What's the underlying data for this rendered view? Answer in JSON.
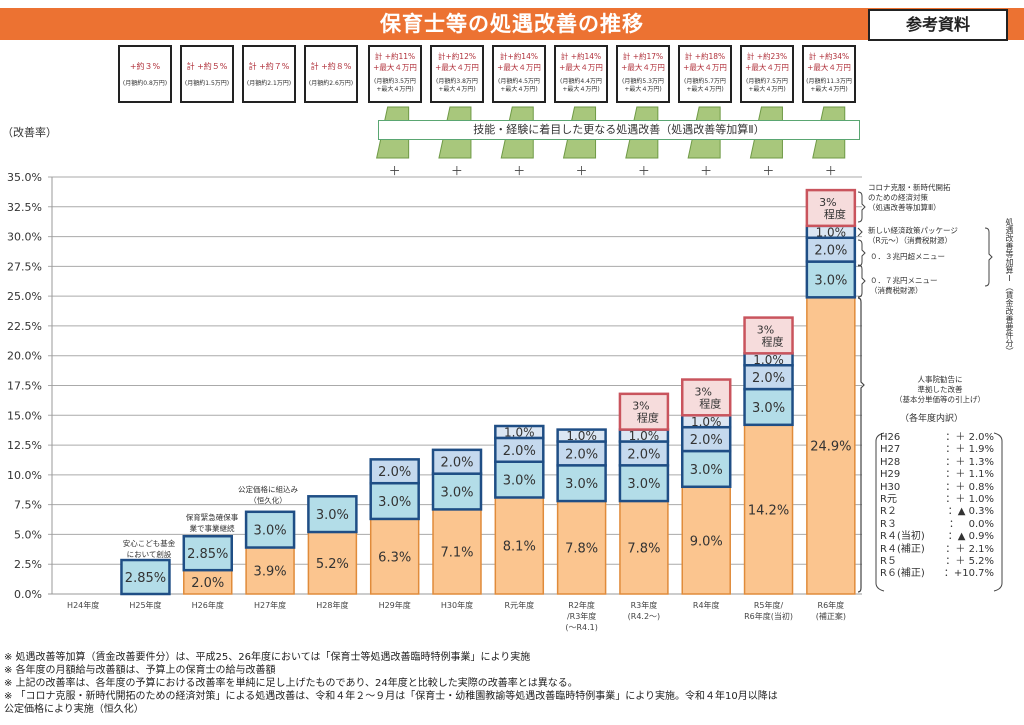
{
  "header": {
    "title": "保育士等の処遇改善の推移",
    "reference_label": "参考資料",
    "accent_color": "#ec7232"
  },
  "rate_boxes": [
    {
      "year": "H25年度",
      "main": "+約３%",
      "sub": "(月額約0.8万円)"
    },
    {
      "year": "H26年度",
      "main": "計 +約５%",
      "sub": "(月額約1.5万円)"
    },
    {
      "year": "H27年度",
      "main": "計 +約７%",
      "sub": "(月額約2.1万円)"
    },
    {
      "year": "H28年度",
      "main": "計 +約８%",
      "sub": "(月額約2.6万円)"
    },
    {
      "year": "H29年度",
      "main": "計 +約11%\n+最大４万円",
      "sub": "(月額約3.5万円\n+最大４万円)"
    },
    {
      "year": "H30年度",
      "main": "計+約12%\n+最大４万円",
      "sub": "(月額約3.8万円\n+最大４万円)"
    },
    {
      "year": "R元年度",
      "main": "計+約14%\n+最大４万円",
      "sub": "(月額約4.5万円\n+最大４万円)"
    },
    {
      "year": "R2年度/R3年度(～R4.1)",
      "main": "計 +約14%\n+最大４万円",
      "sub": "(月額約4.4万円\n+最大４万円)"
    },
    {
      "year": "R3年度(R4.2～)",
      "main": "計 +約17%\n+最大４万円",
      "sub": "(月額約5.3万円\n+最大４万円)"
    },
    {
      "year": "R4年度",
      "main": "計 +約18%\n+最大４万円",
      "sub": "(月額約5.7万円\n+最大４万円)"
    },
    {
      "year": "R5年度/R6年度(当初)",
      "main": "計 +約23%\n+最大４万円",
      "sub": "(月額約7.5万円\n+最大４万円)"
    },
    {
      "year": "R6年度(補正案)",
      "main": "計 +約34%\n+最大４万円",
      "sub": "(月額約11.3万円\n+最大４万円)"
    }
  ],
  "skill_bar": {
    "label": "技能・経験に着目した更なる処遇改善（処遇改善等加算Ⅱ）",
    "plus_symbol": "＋"
  },
  "annotations": {
    "h25": "安心こども基金\nにおいて創設",
    "h26": "保育緊急確保事\n業で事業継続",
    "h27": "公定価格に組込み\n（恒久化）",
    "corona": "コロナ克服・新時代開拓\nのための経済対策\n（処遇改善等加算Ⅲ）",
    "new_package": "新しい経済政策パッケージ\n（R元～）（消費税財源）",
    "menu_03": "０．３兆円超メニュー",
    "menu_07": "０．７兆円メニュー\n（消費税財源）",
    "vertical": "処遇改善等加算Ⅰ（賃金改善要件分）",
    "jinjiin": "人事院勧告に\n準拠した改善\n（基本分単価等の引上げ）",
    "breakdown_title": "（各年度内訳）"
  },
  "breakdown": [
    {
      "year": "H26",
      "value": "：＋ 2.0%"
    },
    {
      "year": "H27",
      "value": "：＋ 1.9%"
    },
    {
      "year": "H28",
      "value": "：＋ 1.3%"
    },
    {
      "year": "H29",
      "value": "：＋ 1.1%"
    },
    {
      "year": "H30",
      "value": "：＋ 0.8%"
    },
    {
      "year": "R元",
      "value": "：＋ 1.0%"
    },
    {
      "year": "R２",
      "value": "：▲ 0.3%"
    },
    {
      "year": "R３",
      "value": "：   0.0%"
    },
    {
      "year": "R４(当初)",
      "value": "：▲ 0.9%"
    },
    {
      "year": "R４(補正)",
      "value": "：＋ 2.1%"
    },
    {
      "year": "R５",
      "value": "：＋ 5.2%"
    },
    {
      "year": "R６(補正)",
      "value": "：+10.7%"
    }
  ],
  "footnotes": [
    "※ 処遇改善等加算（賃金改善要件分）は、平成25、26年度においては「保育士等処遇改善臨時特例事業」により実施",
    "※ 各年度の月額給与改善額は、予算上の保育士の給与改善額",
    "※ 上記の改善率は、各年度の予算における改善率を単純に足し上げたものであり、24年度と比較した実際の改善率とは異なる。",
    "※ 「コロナ克服・新時代開拓のための経済対策」による処遇改善は、令和４年２～９月は「保育士・幼稚園教諭等処遇改善臨時特例事業」により実施。令和４年10月以降は\n   公定価格により実施（恒久化）"
  ],
  "chart_data": {
    "type": "bar",
    "stacked": true,
    "title": "保育士等の処遇改善の推移",
    "ylabel": "（改善率）",
    "xlabel": "",
    "ylim": [
      0,
      35
    ],
    "yticks": [
      "0.0%",
      "2.5%",
      "5.0%",
      "7.5%",
      "10.0%",
      "12.5%",
      "15.0%",
      "17.5%",
      "20.0%",
      "22.5%",
      "25.0%",
      "27.5%",
      "30.0%",
      "32.5%",
      "35.0%"
    ],
    "grid": true,
    "categories": [
      "H24年度",
      "H25年度",
      "H26年度",
      "H27年度",
      "H28年度",
      "H29年度",
      "H30年度",
      "R元年度",
      "R2年度\n/R3年度\n(～R4.1)",
      "R3年度\n(R4.2～)",
      "R4年度",
      "R5年度/\nR6年度(当初)",
      "R6年度\n(補正案)"
    ],
    "series": [
      {
        "name": "人事院勧告に準拠した改善",
        "color": "#fbc58f",
        "values": [
          0,
          0,
          2.0,
          3.9,
          5.2,
          6.3,
          7.1,
          8.1,
          7.8,
          7.8,
          9.0,
          14.2,
          24.9
        ],
        "labels": [
          "",
          "",
          "2.0%",
          "3.9%",
          "5.2%",
          "6.3%",
          "7.1%",
          "8.1%",
          "7.8%",
          "7.8%",
          "9.0%",
          "14.2%",
          "24.9%"
        ]
      },
      {
        "name": "処遇改善等加算Ⅰ 0.7兆円メニュー",
        "color": "#b3dde8",
        "values": [
          0,
          2.85,
          2.85,
          3.0,
          3.0,
          3.0,
          3.0,
          3.0,
          3.0,
          3.0,
          3.0,
          3.0,
          3.0
        ],
        "labels": [
          "",
          "2.85%",
          "2.85%",
          "3.0%",
          "3.0%",
          "3.0%",
          "3.0%",
          "3.0%",
          "3.0%",
          "3.0%",
          "3.0%",
          "3.0%",
          "3.0%"
        ]
      },
      {
        "name": "処遇改善等加算Ⅰ 0.3兆円超メニュー",
        "color": "#c5d9ee",
        "values": [
          0,
          0,
          0,
          0,
          0,
          2.0,
          2.0,
          2.0,
          2.0,
          2.0,
          2.0,
          2.0,
          2.0
        ],
        "labels": [
          "",
          "",
          "",
          "",
          "",
          "2.0%",
          "2.0%",
          "2.0%",
          "2.0%",
          "2.0%",
          "2.0%",
          "2.0%",
          "2.0%"
        ]
      },
      {
        "name": "新しい経済政策パッケージ",
        "color": "#dbe6f3",
        "values": [
          0,
          0,
          0,
          0,
          0,
          0,
          0,
          1.0,
          1.0,
          1.0,
          1.0,
          1.0,
          1.0
        ],
        "labels": [
          "",
          "",
          "",
          "",
          "",
          "",
          "",
          "1.0%",
          "1.0%",
          "1.0%",
          "1.0%",
          "1.0%",
          "1.0%"
        ]
      },
      {
        "name": "処遇改善等加算Ⅲ",
        "color": "#f6dcdc",
        "values": [
          0,
          0,
          0,
          0,
          0,
          0,
          0,
          0,
          0,
          3.0,
          3.0,
          3.0,
          3.0
        ],
        "labels": [
          "",
          "",
          "",
          "",
          "",
          "",
          "",
          "",
          "",
          "3%\n程度",
          "3%\n程度",
          "3%\n程度",
          "3%\n程度"
        ]
      }
    ]
  }
}
